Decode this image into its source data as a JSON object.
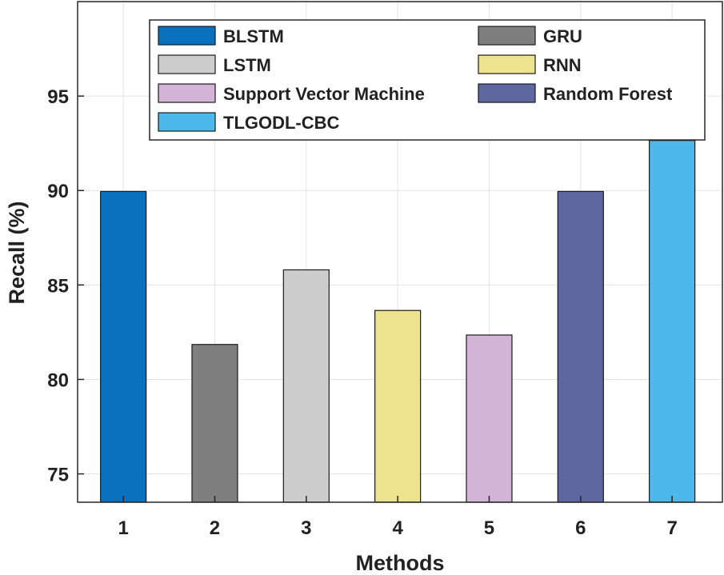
{
  "chart_data": {
    "type": "bar",
    "categories": [
      "1",
      "2",
      "3",
      "4",
      "5",
      "6",
      "7"
    ],
    "values": [
      89.95,
      81.85,
      85.8,
      83.65,
      82.35,
      89.95,
      92.65
    ],
    "series_names": [
      "BLSTM",
      "GRU",
      "LSTM",
      "RNN",
      "Support Vector Machine",
      "Random Forest",
      "TLGODL-CBC"
    ],
    "colors": [
      "#0a71bf",
      "#7f7f7f",
      "#cdcdcd",
      "#ede38e",
      "#d3b4d7",
      "#5e679f",
      "#4cb9ea"
    ],
    "xlabel": "Methods",
    "ylabel": "Recall (%)",
    "ylim": [
      73.5,
      100
    ],
    "yticks": [
      "75",
      "80",
      "85",
      "90",
      "95"
    ],
    "ytick_values": [
      75,
      80,
      85,
      90,
      95
    ],
    "grid": true,
    "legend_position": "top",
    "legend_columns": 2
  }
}
